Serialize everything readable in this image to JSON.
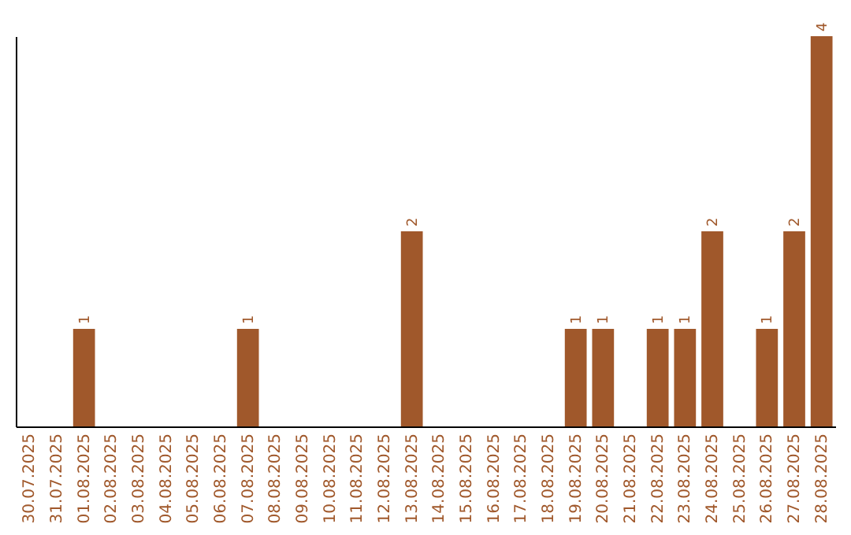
{
  "chart_data": {
    "type": "bar",
    "categories": [
      "30.07.2025",
      "31.07.2025",
      "01.08.2025",
      "02.08.2025",
      "03.08.2025",
      "04.08.2025",
      "05.08.2025",
      "06.08.2025",
      "07.08.2025",
      "08.08.2025",
      "09.08.2025",
      "10.08.2025",
      "11.08.2025",
      "12.08.2025",
      "13.08.2025",
      "14.08.2025",
      "15.08.2025",
      "16.08.2025",
      "17.08.2025",
      "18.08.2025",
      "19.08.2025",
      "20.08.2025",
      "21.08.2025",
      "22.08.2025",
      "23.08.2025",
      "24.08.2025",
      "25.08.2025",
      "26.08.2025",
      "27.08.2025",
      "28.08.2025"
    ],
    "values": [
      0,
      0,
      1,
      0,
      0,
      0,
      0,
      0,
      1,
      0,
      0,
      0,
      0,
      0,
      2,
      0,
      0,
      0,
      0,
      0,
      1,
      1,
      0,
      1,
      1,
      2,
      0,
      1,
      2,
      4
    ],
    "value_labels": [
      null,
      null,
      "1",
      null,
      null,
      null,
      null,
      null,
      "1",
      null,
      null,
      null,
      null,
      null,
      "2",
      null,
      null,
      null,
      null,
      null,
      "1",
      "1",
      null,
      "1",
      "1",
      "2",
      null,
      "1",
      "2",
      "4"
    ],
    "color": "#a0582b",
    "tick_labels": "x"
  }
}
